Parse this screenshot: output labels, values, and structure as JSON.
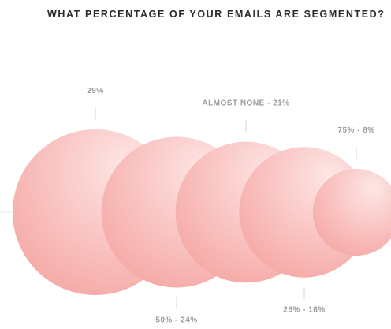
{
  "chart_data": {
    "type": "bubble",
    "title": "WHAT PERCENTAGE OF YOUR EMAILS ARE SEGMENTED?",
    "categories": [
      "",
      "50%",
      "ALMOST NONE",
      "25%",
      "75%"
    ],
    "values": [
      29,
      24,
      21,
      18,
      8
    ],
    "labels": [
      "29%",
      "50% - 24%",
      "ALMOST NONE - 21%",
      "25% - 18%",
      "75% - 8%"
    ],
    "unit": "%",
    "colors": {
      "bubble_edge": "#f5a3a0",
      "bubble_center": "#fde7e6",
      "label": "#9a9a9a",
      "leader": "#d6d6d6",
      "baseline": "#e8e8e8",
      "title": "#2b2b2b"
    }
  }
}
